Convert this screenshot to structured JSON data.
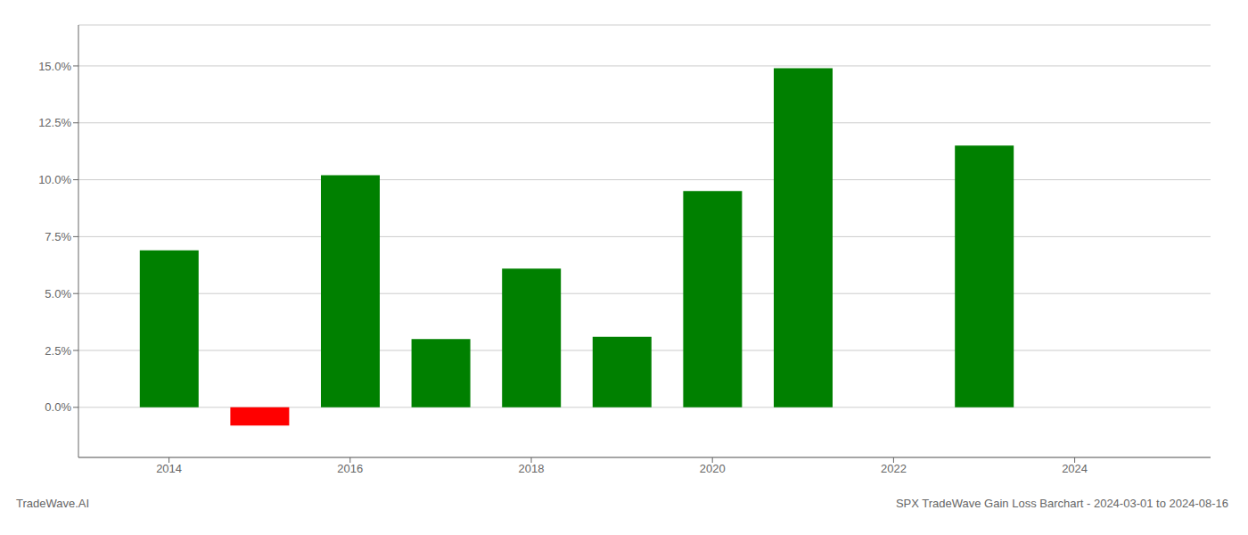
{
  "chart_data": {
    "type": "bar",
    "x": [
      2014,
      2015,
      2016,
      2017,
      2018,
      2019,
      2020,
      2021,
      2023
    ],
    "values": [
      0.069,
      -0.008,
      0.102,
      0.03,
      0.061,
      0.031,
      0.095,
      0.149,
      0.115
    ],
    "colors": [
      "#008000",
      "#ff0000",
      "#008000",
      "#008000",
      "#008000",
      "#008000",
      "#008000",
      "#008000",
      "#008000"
    ],
    "xlim": [
      2013.0,
      2025.5
    ],
    "ylim": [
      -0.022,
      0.168
    ],
    "xticks": [
      2014,
      2016,
      2018,
      2020,
      2022,
      2024
    ],
    "yticks": [
      {
        "value": 0.0,
        "label": "0.0%"
      },
      {
        "value": 0.025,
        "label": "2.5%"
      },
      {
        "value": 0.05,
        "label": "5.0%"
      },
      {
        "value": 0.075,
        "label": "7.5%"
      },
      {
        "value": 0.1,
        "label": "10.0%"
      },
      {
        "value": 0.125,
        "label": "12.5%"
      },
      {
        "value": 0.15,
        "label": "15.0%"
      }
    ],
    "grid": true,
    "annotations": [
      "TradeWave.AI",
      "SPX TradeWave Gain Loss Barchart - 2024-03-01 to 2024-08-16"
    ]
  }
}
